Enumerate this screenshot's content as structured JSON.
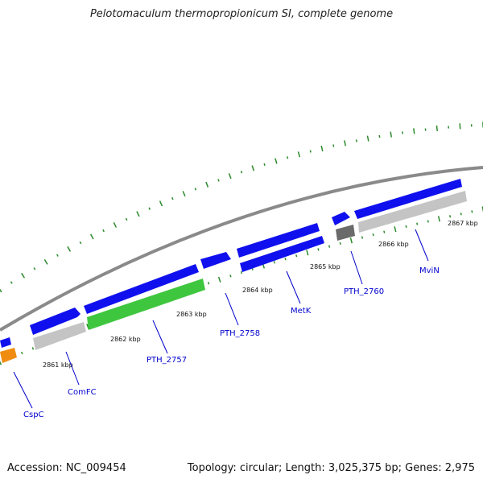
{
  "title": "Pelotomaculum thermopropionicum SI, complete genome",
  "footer": {
    "accession": "Accession: NC_009454",
    "summary": "Topology: circular; Length: 3,025,375 bp; Genes: 2,975"
  },
  "colors": {
    "forward_gene": "#1010ee",
    "reverse_gene": "#c4c4c4",
    "highlight_gene": "#3fc63f",
    "orange_gene": "#f08c10",
    "dark_gene": "#6a6a6a",
    "backbone": "#8a8a8a",
    "tick": "#2a8a2a",
    "label": "#0000cc"
  },
  "scale_labels": [
    "2861 kbp",
    "2862 kbp",
    "2863 kbp",
    "2864 kbp",
    "2865 kbp",
    "2866 kbp",
    "2867 kbp"
  ],
  "gene_labels": [
    "CspC",
    "ComFC",
    "PTH_2757",
    "PTH_2758",
    "MetK",
    "PTH_2760",
    "MviN"
  ]
}
